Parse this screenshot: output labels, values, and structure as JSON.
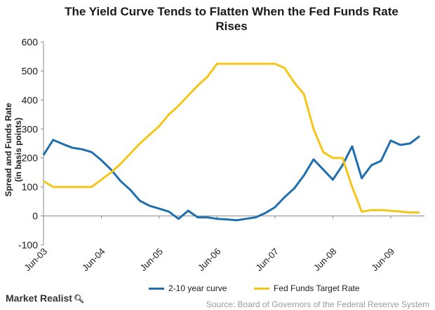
{
  "chart_data": {
    "type": "line",
    "title": "The Yield Curve Tends to Flatten When the Fed Funds Rate Rises",
    "title_lines": [
      "The Yield Curve Tends to Flatten When the Fed Funds Rate",
      "Rises"
    ],
    "xlabel": "",
    "ylabel": "Spread and Funds Rate (in basis points)",
    "ylim": [
      -100,
      600
    ],
    "yticks": [
      -100,
      0,
      100,
      200,
      300,
      400,
      500,
      600
    ],
    "xlim": [
      "2003-06",
      "2010-01"
    ],
    "xticks": [
      "Jun-03",
      "Jun-04",
      "Jun-05",
      "Jun-06",
      "Jun-07",
      "Jun-08",
      "Jun-09"
    ],
    "grid": false,
    "legend": "bottom",
    "series": [
      {
        "name": "2-10 year curve",
        "color": "#1f6fb0",
        "x": [
          "2003-06",
          "2003-08",
          "2003-10",
          "2003-12",
          "2004-02",
          "2004-04",
          "2004-06",
          "2004-08",
          "2004-10",
          "2004-12",
          "2005-02",
          "2005-04",
          "2005-06",
          "2005-08",
          "2005-10",
          "2005-12",
          "2006-02",
          "2006-04",
          "2006-06",
          "2006-08",
          "2006-10",
          "2006-12",
          "2007-02",
          "2007-04",
          "2007-06",
          "2007-08",
          "2007-10",
          "2007-12",
          "2008-02",
          "2008-04",
          "2008-06",
          "2008-08",
          "2008-10",
          "2008-12",
          "2009-02",
          "2009-04",
          "2009-06",
          "2009-08",
          "2009-10",
          "2009-12"
        ],
        "values": [
          210,
          262,
          248,
          235,
          230,
          220,
          192,
          160,
          120,
          90,
          52,
          35,
          25,
          15,
          -10,
          18,
          -5,
          -5,
          -10,
          -12,
          -15,
          -10,
          -5,
          10,
          30,
          65,
          95,
          140,
          195,
          160,
          125,
          175,
          240,
          130,
          175,
          190,
          260,
          245,
          250,
          275
        ]
      },
      {
        "name": "Fed Funds Target Rate",
        "color": "#f5c518",
        "x": [
          "2003-06",
          "2003-08",
          "2003-10",
          "2003-12",
          "2004-02",
          "2004-04",
          "2004-06",
          "2004-08",
          "2004-10",
          "2004-12",
          "2005-02",
          "2005-04",
          "2005-06",
          "2005-08",
          "2005-10",
          "2005-12",
          "2006-02",
          "2006-04",
          "2006-06",
          "2006-08",
          "2006-10",
          "2006-12",
          "2007-02",
          "2007-04",
          "2007-06",
          "2007-08",
          "2007-10",
          "2007-12",
          "2008-02",
          "2008-04",
          "2008-06",
          "2008-08",
          "2008-10",
          "2008-12",
          "2009-02",
          "2009-04",
          "2009-06",
          "2009-08",
          "2009-10",
          "2009-12"
        ],
        "values": [
          120,
          100,
          100,
          100,
          100,
          100,
          125,
          150,
          180,
          215,
          250,
          280,
          310,
          350,
          380,
          415,
          450,
          480,
          525,
          525,
          525,
          525,
          525,
          525,
          525,
          510,
          460,
          420,
          300,
          220,
          200,
          200,
          100,
          15,
          20,
          20,
          18,
          15,
          12,
          12
        ]
      }
    ]
  },
  "legend_labels": [
    "2-10 year curve",
    "Fed Funds Target Rate"
  ],
  "branding": {
    "name": "Market Realist",
    "icon": "magnifier-icon"
  },
  "source": "Source: Board of Governors of the Federal Reserve System"
}
